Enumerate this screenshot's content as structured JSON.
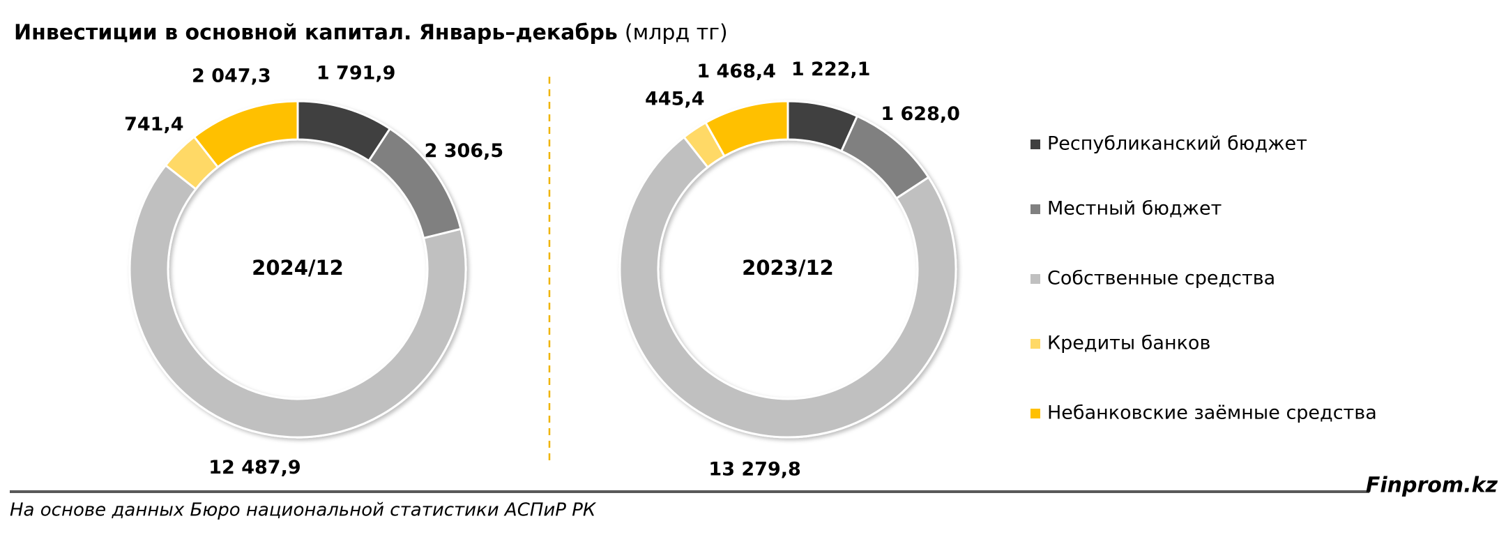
{
  "title": "Инвестиции в основной капитал. Январь–декабрь",
  "unit": "(млрд тг)",
  "source": "На основе данных Бюро национальной статистики АСПиР РК",
  "brand": "Finprom.kz",
  "chart_data": [
    {
      "type": "donut",
      "label": "2024/12",
      "categories": [
        "Республиканский бюджет",
        "Местный бюджет",
        "Собственные средства",
        "Кредиты банков",
        "Небанковские заёмные средства"
      ],
      "colors": [
        "#404040",
        "#808080",
        "#c0c0c0",
        "#ffd966",
        "#ffc000"
      ],
      "values": [
        1791.9,
        2306.5,
        12487.9,
        741.4,
        2047.3
      ],
      "value_labels": [
        "1 791,9",
        "2 306,5",
        "12 487,9",
        "741,4",
        "2 047,3"
      ]
    },
    {
      "type": "donut",
      "label": "2023/12",
      "values": [
        1222.1,
        1628.0,
        13279.8,
        445.4,
        1468.4
      ],
      "value_labels": [
        "1 222,1",
        "1 628,0",
        "13 279,8",
        "445,4",
        "1 468,4"
      ]
    }
  ]
}
